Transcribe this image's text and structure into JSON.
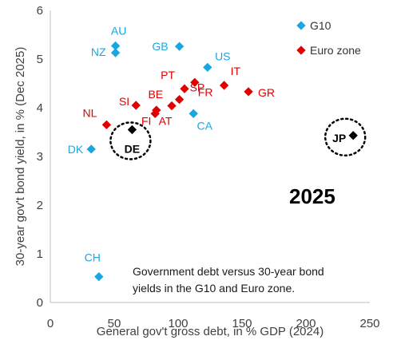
{
  "chart_data": {
    "type": "scatter",
    "xlabel": "General gov't gross debt, in % GDP (2024)",
    "ylabel": "30-year gov't bond yield, in % (Dec 2025)",
    "xlim": [
      0,
      250
    ],
    "ylim": [
      0,
      6
    ],
    "xticks": [
      "0",
      "50",
      "100",
      "150",
      "200",
      "250"
    ],
    "yticks": [
      "0",
      "1",
      "2",
      "3",
      "4",
      "5",
      "6"
    ],
    "grid": false,
    "legend_position": "top-right",
    "year_label": "2025",
    "note": [
      "Government debt versus 30-year bond",
      "yields in the G10 and Euro zone."
    ],
    "series": [
      {
        "name": "G10",
        "color": "#1AA7E0",
        "points": [
          {
            "label": "AU",
            "x": 51,
            "y": 5.27
          },
          {
            "label": "NZ",
            "x": 51,
            "y": 5.13
          },
          {
            "label": "GB",
            "x": 101,
            "y": 5.26
          },
          {
            "label": "US",
            "x": 123,
            "y": 4.83
          },
          {
            "label": "CA",
            "x": 112,
            "y": 3.88
          },
          {
            "label": "DK",
            "x": 32,
            "y": 3.15
          },
          {
            "label": "CH",
            "x": 38,
            "y": 0.53
          }
        ]
      },
      {
        "name": "Euro zone",
        "color": "#E00000",
        "points": [
          {
            "label": "NL",
            "x": 44,
            "y": 3.65
          },
          {
            "label": "SI",
            "x": 67,
            "y": 4.05
          },
          {
            "label": "FI",
            "x": 82,
            "y": 3.88
          },
          {
            "label": "BE",
            "x": 83,
            "y": 3.95
          },
          {
            "label": "AT",
            "x": 95,
            "y": 4.04
          },
          {
            "label": "SP",
            "x": 101,
            "y": 4.17
          },
          {
            "label": "PT",
            "x": 105,
            "y": 4.39
          },
          {
            "label": "FR",
            "x": 113,
            "y": 4.52
          },
          {
            "label": "IT",
            "x": 136,
            "y": 4.46
          },
          {
            "label": "GR",
            "x": 155,
            "y": 4.33
          }
        ]
      },
      {
        "color": "#000000",
        "points": [
          {
            "label": "DE",
            "x": 64,
            "y": 3.55
          },
          {
            "label": "JP",
            "x": 237,
            "y": 3.43
          }
        ]
      }
    ]
  }
}
